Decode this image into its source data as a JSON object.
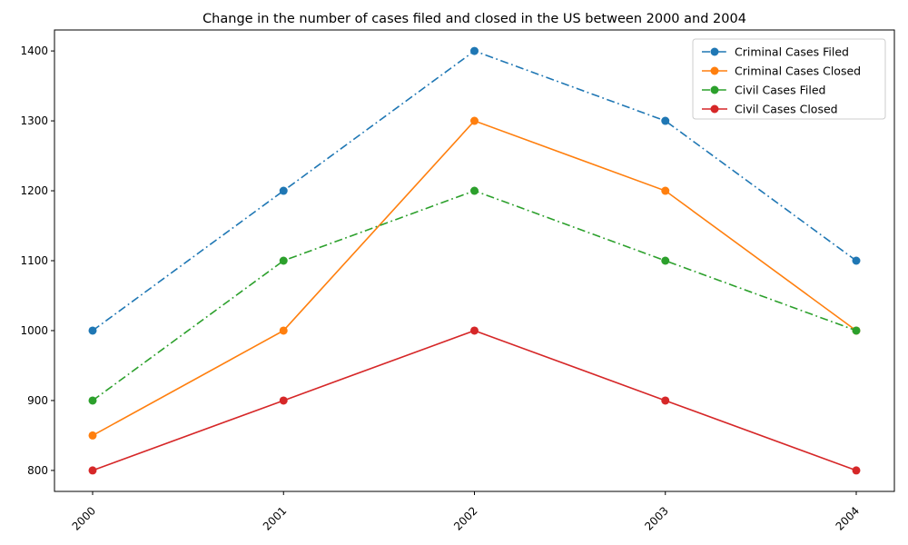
{
  "chart_data": {
    "type": "line",
    "title": "Change in the number of cases filed and closed in the US between 2000 and 2004",
    "xlabel": "",
    "ylabel": "",
    "categories": [
      "2000",
      "2001",
      "2002",
      "2003",
      "2004"
    ],
    "ylim": [
      770,
      1430
    ],
    "yticks": [
      800,
      900,
      1000,
      1100,
      1200,
      1300,
      1400
    ],
    "grid": false,
    "legend_position": "top-right",
    "series": [
      {
        "name": "Criminal Cases Filed",
        "values": [
          1000,
          1200,
          1400,
          1300,
          1100
        ],
        "color": "#1f77b4",
        "linestyle": "dashdot",
        "marker": "circle"
      },
      {
        "name": "Criminal Cases Closed",
        "values": [
          850,
          1000,
          1300,
          1200,
          1000
        ],
        "color": "#ff7f0e",
        "linestyle": "solid",
        "marker": "circle"
      },
      {
        "name": "Civil Cases Filed",
        "values": [
          900,
          1100,
          1200,
          1100,
          1000
        ],
        "color": "#2ca02c",
        "linestyle": "dashdot",
        "marker": "circle"
      },
      {
        "name": "Civil Cases Closed",
        "values": [
          800,
          900,
          1000,
          900,
          800
        ],
        "color": "#d62728",
        "linestyle": "solid",
        "marker": "circle"
      }
    ]
  }
}
